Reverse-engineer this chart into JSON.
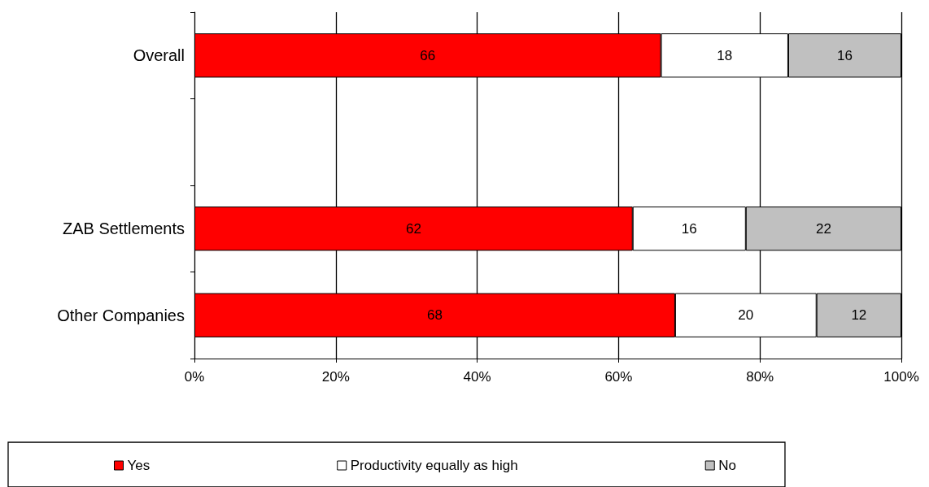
{
  "chart_data": {
    "type": "bar",
    "orientation": "horizontal",
    "stacked": true,
    "data_labels": true,
    "grid": "x",
    "legend": "bottom",
    "categories": [
      "Overall",
      null,
      "ZAB Settlements",
      "Other Companies"
    ],
    "series": [
      {
        "name": "Yes",
        "color": "#ff0000",
        "values": [
          66,
          null,
          62,
          68
        ]
      },
      {
        "name": "Productivity equally as high",
        "color": "#ffffff",
        "values": [
          18,
          null,
          16,
          20
        ]
      },
      {
        "name": "No",
        "color": "#c0c0c0",
        "values": [
          16,
          null,
          22,
          12
        ]
      }
    ],
    "xlim": [
      0,
      100
    ],
    "xticks": [
      {
        "value": 0,
        "label": "0%"
      },
      {
        "value": 20,
        "label": "20%"
      },
      {
        "value": 40,
        "label": "40%"
      },
      {
        "value": 60,
        "label": "60%"
      },
      {
        "value": 80,
        "label": "80%"
      },
      {
        "value": 100,
        "label": "100%"
      }
    ]
  }
}
